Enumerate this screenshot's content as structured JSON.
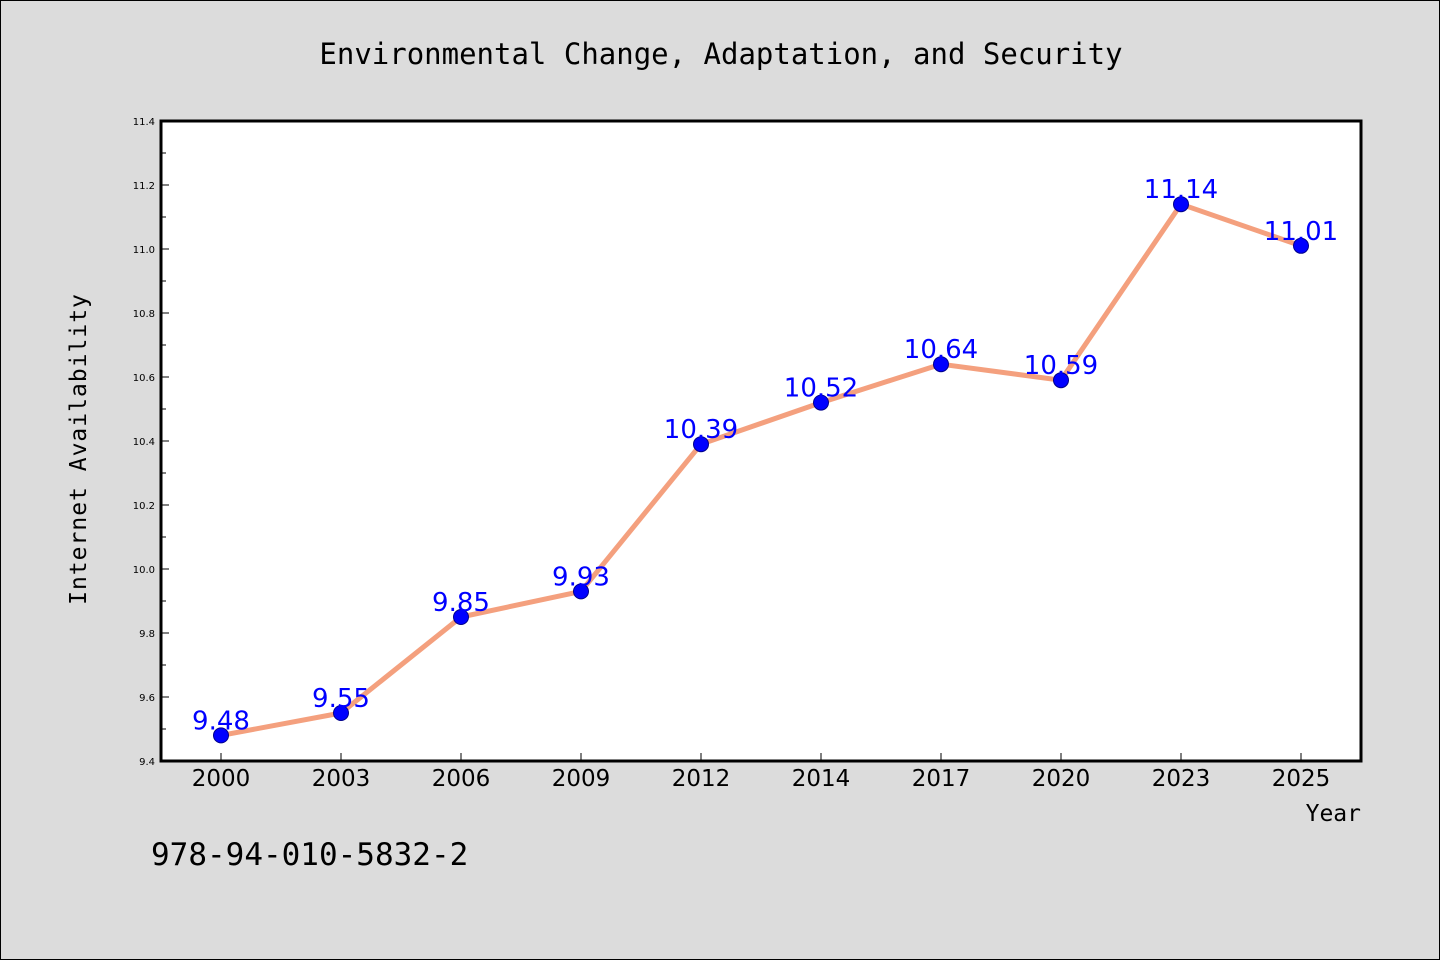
{
  "chart_data": {
    "type": "line",
    "title": "Environmental Change, Adaptation, and Security",
    "xlabel": "Year",
    "ylabel": "Internet Availability",
    "categories": [
      "2000",
      "2003",
      "2006",
      "2009",
      "2012",
      "2014",
      "2017",
      "2020",
      "2023",
      "2025"
    ],
    "series": [
      {
        "values": [
          9.48,
          9.55,
          9.85,
          9.93,
          10.39,
          10.52,
          10.64,
          10.59,
          11.14,
          11.01
        ]
      }
    ],
    "data_labels": [
      "9.48",
      "9.55",
      "9.85",
      "9.93",
      "10.39",
      "10.52",
      "10.64",
      "10.59",
      "11.14",
      "11.01"
    ],
    "ylim": [
      9.4,
      11.4
    ],
    "yticks": [
      9.4,
      9.6,
      9.8,
      10.0,
      10.2,
      10.4,
      10.6,
      10.8,
      11.0,
      11.2,
      11.4
    ],
    "ytick_labels": [
      "9.4",
      "9.6",
      "9.8",
      "10.0",
      "10.2",
      "10.4",
      "10.6",
      "10.8",
      "11.0",
      "11.2",
      "11.4"
    ],
    "grid": false,
    "legend": "none",
    "colors": {
      "line": "#f4a07e",
      "marker_fill": "#0000ff",
      "marker_edge": "#00008b",
      "data_label": "#0000ff",
      "figure_background": "#dcdcdc",
      "plot_background": "#ffffff"
    }
  },
  "footer": {
    "text": "978-94-010-5832-2"
  }
}
